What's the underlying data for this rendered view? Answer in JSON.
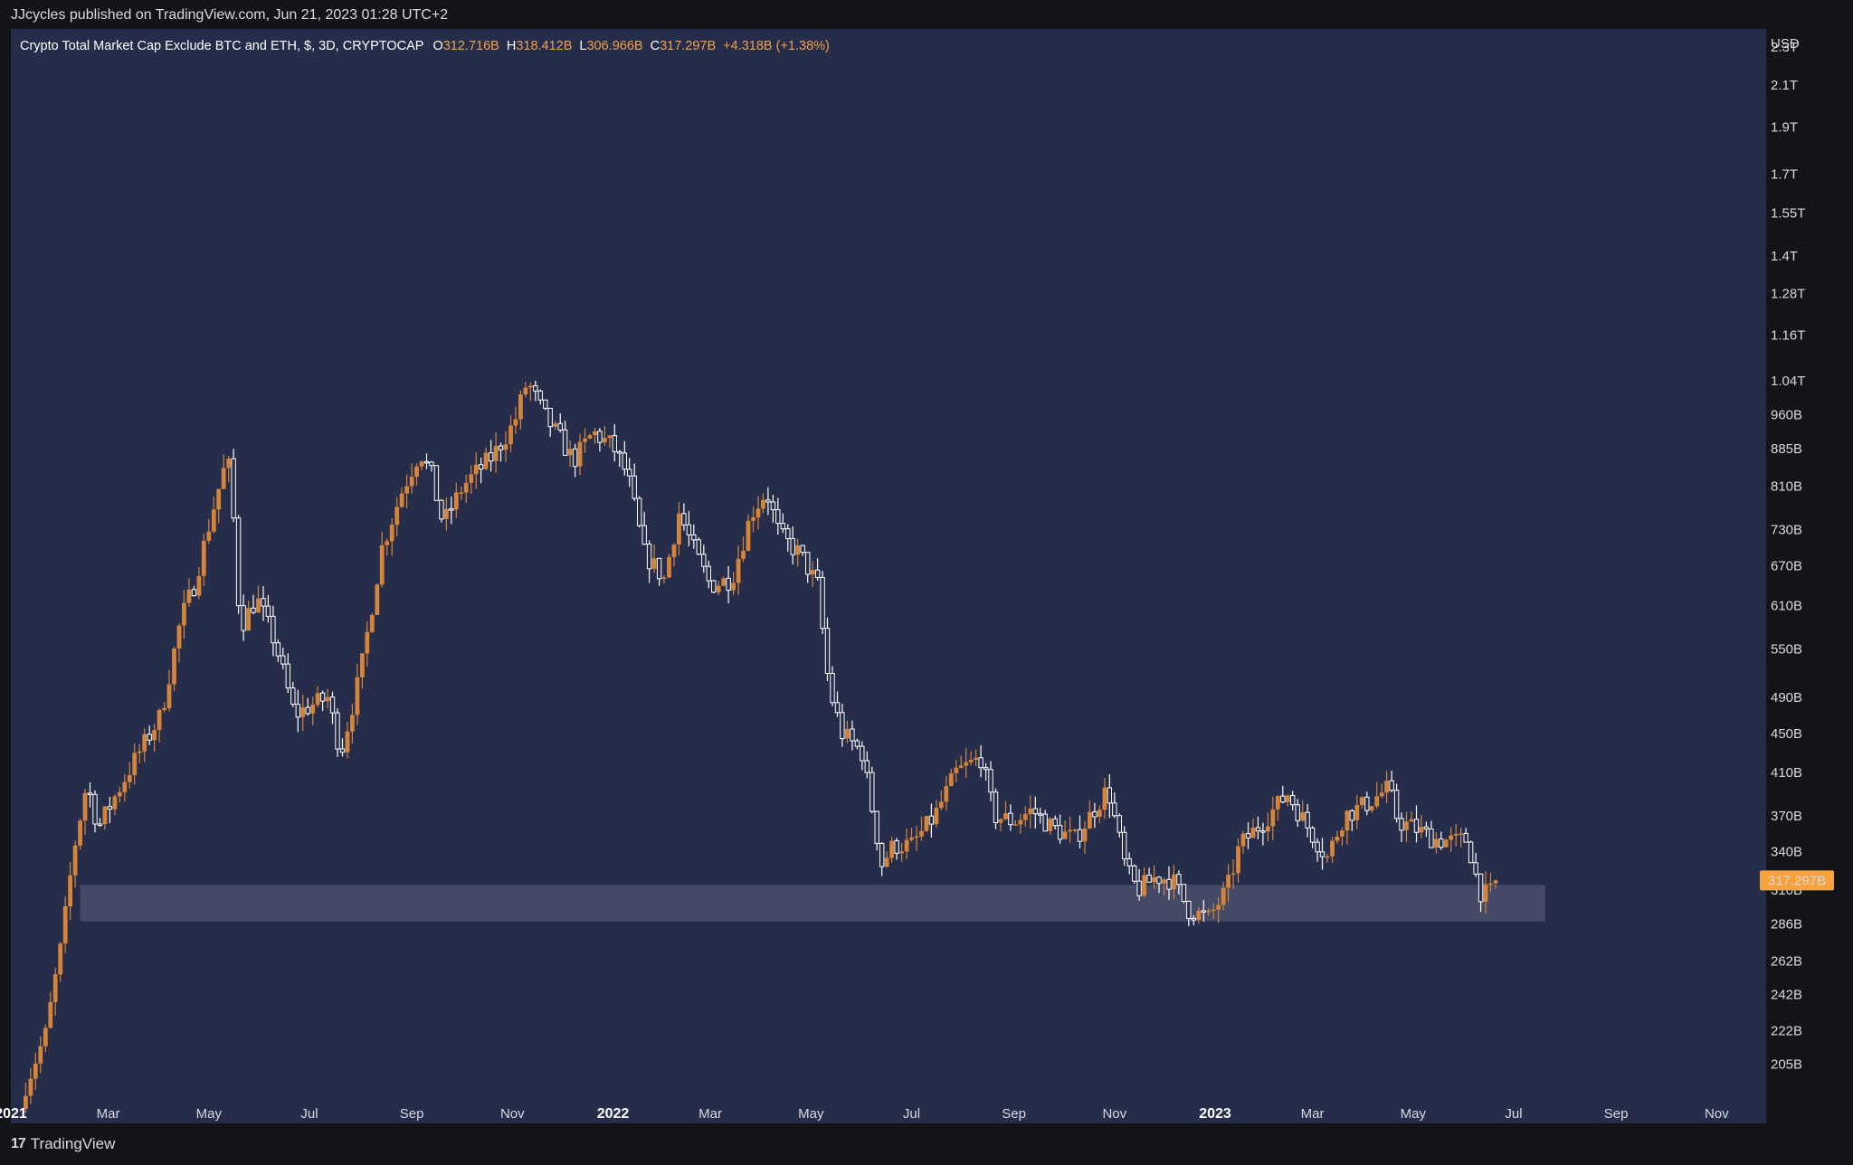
{
  "publisher_line": "JJcycles published on TradingView.com, Jun 21, 2023 01:28 UTC+2",
  "footer": {
    "logo_text": "TradingView",
    "logo_icon": "tradingview-logo-icon"
  },
  "colors": {
    "background": "#131418",
    "pane": "#262d4a",
    "up_candle": "#d4843b",
    "down_candle": "#ffffff",
    "support_zone": "#4a4f6a",
    "price_label_bg": "#f7a23a",
    "legend_values": "#f0a04b"
  },
  "legend": {
    "symbol": "Crypto Total Market Cap Exclude BTC and ETH, $, 3D, CRYPTOCAP",
    "open_label": "O",
    "open_value": "312.716B",
    "high_label": "H",
    "high_value": "318.412B",
    "low_label": "L",
    "low_value": "306.966B",
    "close_label": "C",
    "close_value": "317.297B",
    "change": "+4.318B (+1.38%)"
  },
  "chart_data": {
    "type": "candlestick",
    "title": "Crypto Total Market Cap Exclude BTC and ETH, $, 3D, CRYPTOCAP",
    "interval": "3D",
    "currency": "USD",
    "y_scale": "log",
    "y_unit_label": "USD",
    "y_range": [
      190,
      2400
    ],
    "x_range": [
      "2021-01-01",
      "2023-12-01"
    ],
    "y_ticks": [
      {
        "label": "2.3T",
        "value": 2300
      },
      {
        "label": "2.1T",
        "value": 2100
      },
      {
        "label": "1.9T",
        "value": 1900
      },
      {
        "label": "1.7T",
        "value": 1700
      },
      {
        "label": "1.55T",
        "value": 1550
      },
      {
        "label": "1.4T",
        "value": 1400
      },
      {
        "label": "1.28T",
        "value": 1280
      },
      {
        "label": "1.16T",
        "value": 1160
      },
      {
        "label": "1.04T",
        "value": 1040
      },
      {
        "label": "960B",
        "value": 960
      },
      {
        "label": "885B",
        "value": 885
      },
      {
        "label": "810B",
        "value": 810
      },
      {
        "label": "730B",
        "value": 730
      },
      {
        "label": "670B",
        "value": 670
      },
      {
        "label": "610B",
        "value": 610
      },
      {
        "label": "550B",
        "value": 550
      },
      {
        "label": "490B",
        "value": 490
      },
      {
        "label": "450B",
        "value": 450
      },
      {
        "label": "410B",
        "value": 410
      },
      {
        "label": "370B",
        "value": 370
      },
      {
        "label": "340B",
        "value": 340
      },
      {
        "label": "310B",
        "value": 310
      },
      {
        "label": "286B",
        "value": 286
      },
      {
        "label": "262B",
        "value": 262
      },
      {
        "label": "242B",
        "value": 242
      },
      {
        "label": "222B",
        "value": 222
      },
      {
        "label": "205B",
        "value": 205
      }
    ],
    "x_ticks": [
      {
        "label": "2021",
        "date": "2021-01-01",
        "bold": true
      },
      {
        "label": "Mar",
        "date": "2021-03-01"
      },
      {
        "label": "May",
        "date": "2021-05-01"
      },
      {
        "label": "Jul",
        "date": "2021-07-01"
      },
      {
        "label": "Sep",
        "date": "2021-09-01"
      },
      {
        "label": "Nov",
        "date": "2021-11-01"
      },
      {
        "label": "2022",
        "date": "2022-01-01",
        "bold": true
      },
      {
        "label": "Mar",
        "date": "2022-03-01"
      },
      {
        "label": "May",
        "date": "2022-05-01"
      },
      {
        "label": "Jul",
        "date": "2022-07-01"
      },
      {
        "label": "Sep",
        "date": "2022-09-01"
      },
      {
        "label": "Nov",
        "date": "2022-11-01"
      },
      {
        "label": "2023",
        "date": "2023-01-01",
        "bold": true
      },
      {
        "label": "Mar",
        "date": "2023-03-01"
      },
      {
        "label": "May",
        "date": "2023-05-01"
      },
      {
        "label": "Jul",
        "date": "2023-07-01"
      },
      {
        "label": "Sep",
        "date": "2023-09-01"
      },
      {
        "label": "Nov",
        "date": "2023-11-01"
      }
    ],
    "close_path": [
      [
        "2021-01-10",
        195
      ],
      [
        "2021-01-22",
        220
      ],
      [
        "2021-02-01",
        275
      ],
      [
        "2021-02-08",
        340
      ],
      [
        "2021-02-16",
        400
      ],
      [
        "2021-02-23",
        360
      ],
      [
        "2021-03-06",
        390
      ],
      [
        "2021-03-18",
        425
      ],
      [
        "2021-04-02",
        470
      ],
      [
        "2021-04-14",
        590
      ],
      [
        "2021-04-22",
        640
      ],
      [
        "2021-05-03",
        760
      ],
      [
        "2021-05-10",
        840
      ],
      [
        "2021-05-14",
        850
      ],
      [
        "2021-05-20",
        580
      ],
      [
        "2021-05-30",
        620
      ],
      [
        "2021-06-10",
        560
      ],
      [
        "2021-06-22",
        470
      ],
      [
        "2021-07-01",
        480
      ],
      [
        "2021-07-12",
        490
      ],
      [
        "2021-07-20",
        430
      ],
      [
        "2021-08-01",
        520
      ],
      [
        "2021-08-14",
        700
      ],
      [
        "2021-08-26",
        800
      ],
      [
        "2021-09-06",
        880
      ],
      [
        "2021-09-13",
        830
      ],
      [
        "2021-09-20",
        740
      ],
      [
        "2021-10-02",
        810
      ],
      [
        "2021-10-20",
        870
      ],
      [
        "2021-11-02",
        940
      ],
      [
        "2021-11-10",
        1040
      ],
      [
        "2021-11-20",
        960
      ],
      [
        "2021-12-01",
        900
      ],
      [
        "2021-12-08",
        860
      ],
      [
        "2021-12-20",
        920
      ],
      [
        "2022-01-01",
        890
      ],
      [
        "2022-01-10",
        830
      ],
      [
        "2022-01-20",
        690
      ],
      [
        "2022-02-01",
        650
      ],
      [
        "2022-02-10",
        760
      ],
      [
        "2022-02-20",
        690
      ],
      [
        "2022-03-01",
        640
      ],
      [
        "2022-03-14",
        650
      ],
      [
        "2022-03-26",
        760
      ],
      [
        "2022-04-04",
        800
      ],
      [
        "2022-04-12",
        720
      ],
      [
        "2022-04-24",
        690
      ],
      [
        "2022-05-05",
        640
      ],
      [
        "2022-05-12",
        500
      ],
      [
        "2022-05-20",
        450
      ],
      [
        "2022-06-01",
        430
      ],
      [
        "2022-06-13",
        330
      ],
      [
        "2022-06-20",
        345
      ],
      [
        "2022-07-01",
        345
      ],
      [
        "2022-07-15",
        370
      ],
      [
        "2022-07-28",
        410
      ],
      [
        "2022-08-12",
        425
      ],
      [
        "2022-08-20",
        370
      ],
      [
        "2022-09-01",
        365
      ],
      [
        "2022-09-12",
        375
      ],
      [
        "2022-09-24",
        360
      ],
      [
        "2022-10-08",
        350
      ],
      [
        "2022-10-28",
        395
      ],
      [
        "2022-11-08",
        325
      ],
      [
        "2022-11-15",
        310
      ],
      [
        "2022-11-26",
        320
      ],
      [
        "2022-12-06",
        318
      ],
      [
        "2022-12-16",
        296
      ],
      [
        "2022-12-28",
        290
      ],
      [
        "2023-01-08",
        310
      ],
      [
        "2023-01-16",
        345
      ],
      [
        "2023-01-30",
        365
      ],
      [
        "2023-02-14",
        390
      ],
      [
        "2023-02-24",
        365
      ],
      [
        "2023-03-10",
        335
      ],
      [
        "2023-03-20",
        370
      ],
      [
        "2023-04-02",
        380
      ],
      [
        "2023-04-16",
        395
      ],
      [
        "2023-04-22",
        365
      ],
      [
        "2023-05-01",
        360
      ],
      [
        "2023-05-14",
        350
      ],
      [
        "2023-05-26",
        348
      ],
      [
        "2023-06-03",
        350
      ],
      [
        "2023-06-10",
        310
      ],
      [
        "2023-06-16",
        306
      ],
      [
        "2023-06-21",
        317.297
      ]
    ],
    "support_zone": {
      "from": "2021-02-12",
      "to": "2023-07-20",
      "low": 288,
      "high": 314
    },
    "last_price": {
      "label": "317.297B",
      "value": 317.297
    },
    "grid": false,
    "legend": "top-left"
  }
}
